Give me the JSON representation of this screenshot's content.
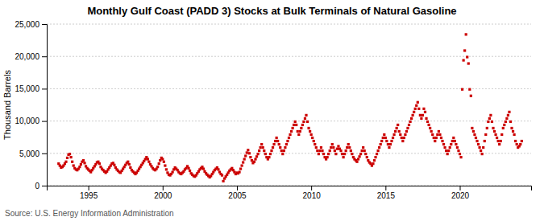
{
  "chart_data": {
    "type": "scatter",
    "title": "Monthly Gulf Coast (PADD 3) Stocks at Bulk Terminals of Natural Gasoline",
    "ylabel": "Thousand Barrels",
    "source": "Source: U.S. Energy Information Administration",
    "color": "#cc0000",
    "marker": "square",
    "grid": "y",
    "xlim": [
      1992.2,
      2024.8
    ],
    "ylim": [
      0,
      25000
    ],
    "xticks": [
      1995,
      2000,
      2005,
      2010,
      2015,
      2020
    ],
    "yticks": [
      0,
      {
        "value": 5000,
        "label": "5,000"
      },
      {
        "value": 10000,
        "label": "10,000"
      },
      {
        "value": 15000,
        "label": "15,000"
      },
      {
        "value": 20000,
        "label": "20,000"
      },
      {
        "value": 25000,
        "label": "25,000"
      }
    ],
    "x": [
      1993.0,
      1993.083,
      1993.167,
      1993.25,
      1993.333,
      1993.417,
      1993.5,
      1993.583,
      1993.667,
      1993.75,
      1993.833,
      1993.917,
      1994.0,
      1994.083,
      1994.167,
      1994.25,
      1994.333,
      1994.417,
      1994.5,
      1994.583,
      1994.667,
      1994.75,
      1994.833,
      1994.917,
      1995.0,
      1995.083,
      1995.167,
      1995.25,
      1995.333,
      1995.417,
      1995.5,
      1995.583,
      1995.667,
      1995.75,
      1995.833,
      1995.917,
      1996.0,
      1996.083,
      1996.167,
      1996.25,
      1996.333,
      1996.417,
      1996.5,
      1996.583,
      1996.667,
      1996.75,
      1996.833,
      1996.917,
      1997.0,
      1997.083,
      1997.167,
      1997.25,
      1997.333,
      1997.417,
      1997.5,
      1997.583,
      1997.667,
      1997.75,
      1997.833,
      1997.917,
      1998.0,
      1998.083,
      1998.167,
      1998.25,
      1998.333,
      1998.417,
      1998.5,
      1998.583,
      1998.667,
      1998.75,
      1998.833,
      1998.917,
      1999.0,
      1999.083,
      1999.167,
      1999.25,
      1999.333,
      1999.417,
      1999.5,
      1999.583,
      1999.667,
      1999.75,
      1999.833,
      1999.917,
      2000.0,
      2000.083,
      2000.167,
      2000.25,
      2000.333,
      2000.417,
      2000.5,
      2000.583,
      2000.667,
      2000.75,
      2000.833,
      2000.917,
      2001.0,
      2001.083,
      2001.167,
      2001.25,
      2001.333,
      2001.417,
      2001.5,
      2001.583,
      2001.667,
      2001.75,
      2001.833,
      2001.917,
      2002.0,
      2002.083,
      2002.167,
      2002.25,
      2002.333,
      2002.417,
      2002.5,
      2002.583,
      2002.667,
      2002.75,
      2002.833,
      2002.917,
      2003.0,
      2003.083,
      2003.167,
      2003.25,
      2003.333,
      2003.417,
      2003.5,
      2003.583,
      2003.667,
      2003.75,
      2003.833,
      2003.917,
      2004.0,
      2004.083,
      2004.167,
      2004.25,
      2004.333,
      2004.417,
      2004.5,
      2004.583,
      2004.667,
      2004.75,
      2004.833,
      2004.917,
      2005.0,
      2005.083,
      2005.167,
      2005.25,
      2005.333,
      2005.417,
      2005.5,
      2005.583,
      2005.667,
      2005.75,
      2005.833,
      2005.917,
      2006.0,
      2006.083,
      2006.167,
      2006.25,
      2006.333,
      2006.417,
      2006.5,
      2006.583,
      2006.667,
      2006.75,
      2006.833,
      2006.917,
      2007.0,
      2007.083,
      2007.167,
      2007.25,
      2007.333,
      2007.417,
      2007.5,
      2007.583,
      2007.667,
      2007.75,
      2007.833,
      2007.917,
      2008.0,
      2008.083,
      2008.167,
      2008.25,
      2008.333,
      2008.417,
      2008.5,
      2008.583,
      2008.667,
      2008.75,
      2008.833,
      2008.917,
      2009.0,
      2009.083,
      2009.167,
      2009.25,
      2009.333,
      2009.417,
      2009.5,
      2009.583,
      2009.667,
      2009.75,
      2009.833,
      2009.917,
      2010.0,
      2010.083,
      2010.167,
      2010.25,
      2010.333,
      2010.417,
      2010.5,
      2010.583,
      2010.667,
      2010.75,
      2010.833,
      2010.917,
      2011.0,
      2011.083,
      2011.167,
      2011.25,
      2011.333,
      2011.417,
      2011.5,
      2011.583,
      2011.667,
      2011.75,
      2011.833,
      2011.917,
      2012.0,
      2012.083,
      2012.167,
      2012.25,
      2012.333,
      2012.417,
      2012.5,
      2012.583,
      2012.667,
      2012.75,
      2012.833,
      2012.917,
      2013.0,
      2013.083,
      2013.167,
      2013.25,
      2013.333,
      2013.417,
      2013.5,
      2013.583,
      2013.667,
      2013.75,
      2013.833,
      2013.917,
      2014.0,
      2014.083,
      2014.167,
      2014.25,
      2014.333,
      2014.417,
      2014.5,
      2014.583,
      2014.667,
      2014.75,
      2014.833,
      2014.917,
      2015.0,
      2015.083,
      2015.167,
      2015.25,
      2015.333,
      2015.417,
      2015.5,
      2015.583,
      2015.667,
      2015.75,
      2015.833,
      2015.917,
      2016.0,
      2016.083,
      2016.167,
      2016.25,
      2016.333,
      2016.417,
      2016.5,
      2016.583,
      2016.667,
      2016.75,
      2016.833,
      2016.917,
      2017.0,
      2017.083,
      2017.167,
      2017.25,
      2017.333,
      2017.417,
      2017.5,
      2017.583,
      2017.667,
      2017.75,
      2017.833,
      2017.917,
      2018.0,
      2018.083,
      2018.167,
      2018.25,
      2018.333,
      2018.417,
      2018.5,
      2018.583,
      2018.667,
      2018.75,
      2018.833,
      2018.917,
      2019.0,
      2019.083,
      2019.167,
      2019.25,
      2019.333,
      2019.417,
      2019.5,
      2019.583,
      2019.667,
      2019.75,
      2019.833,
      2019.917,
      2020.0,
      2020.083,
      2020.167,
      2020.25,
      2020.333,
      2020.417,
      2020.5,
      2020.583,
      2020.667,
      2020.75,
      2020.833,
      2020.917,
      2021.0,
      2021.083,
      2021.167,
      2021.25,
      2021.333,
      2021.417,
      2021.5,
      2021.583,
      2021.667,
      2021.75,
      2021.833,
      2021.917,
      2022.0,
      2022.083,
      2022.167,
      2022.25,
      2022.333,
      2022.417,
      2022.5,
      2022.583,
      2022.667,
      2022.75,
      2022.833,
      2022.917,
      2023.0,
      2023.083,
      2023.167,
      2023.25,
      2023.333,
      2023.417,
      2023.5,
      2023.583,
      2023.667,
      2023.75,
      2023.833,
      2023.917,
      2024.0,
      2024.083,
      2024.167
    ],
    "values": [
      3400,
      3100,
      2800,
      2900,
      3100,
      3400,
      3700,
      4300,
      4800,
      4900,
      4400,
      3700,
      3100,
      2700,
      2500,
      2400,
      2600,
      2900,
      3300,
      3700,
      3900,
      3500,
      3000,
      2700,
      2500,
      2300,
      2100,
      2400,
      2700,
      3000,
      3300,
      3600,
      3700,
      3400,
      2900,
      2600,
      2400,
      2200,
      2000,
      2200,
      2500,
      2800,
      3100,
      3400,
      3500,
      3200,
      2800,
      2500,
      2300,
      2100,
      2000,
      2300,
      2600,
      2900,
      3200,
      3500,
      3700,
      3300,
      2800,
      2400,
      2200,
      2000,
      1800,
      2000,
      2300,
      2600,
      2900,
      3200,
      3500,
      3800,
      4100,
      4400,
      4100,
      3700,
      3300,
      3000,
      2700,
      2500,
      2400,
      2600,
      2900,
      3400,
      3900,
      4300,
      4100,
      3700,
      3100,
      2500,
      2000,
      1700,
      1600,
      1800,
      2100,
      2500,
      2800,
      2600,
      2400,
      2100,
      1900,
      1800,
      2000,
      2200,
      2500,
      2700,
      3000,
      2700,
      2300,
      1900,
      1700,
      1500,
      1400,
      1600,
      1900,
      2200,
      2500,
      2700,
      2900,
      2600,
      2200,
      1900,
      1700,
      1500,
      1300,
      1500,
      1800,
      2100,
      2400,
      2600,
      2800,
      2500,
      2100,
      1800,
      1600,
      700,
      1100,
      1400,
      1700,
      2000,
      2300,
      2500,
      2700,
      2400,
      2100,
      1800,
      2000,
      1900,
      2100,
      2600,
      3100,
      3600,
      4100,
      4600,
      5100,
      5500,
      5000,
      4400,
      3900,
      3500,
      3700,
      4100,
      4500,
      4900,
      5400,
      5900,
      6400,
      5900,
      5400,
      4900,
      4400,
      4100,
      4400,
      4900,
      5400,
      5900,
      6400,
      6900,
      7400,
      6900,
      6400,
      5900,
      5400,
      4900,
      5400,
      5900,
      6400,
      6900,
      7400,
      7900,
      8400,
      8900,
      9400,
      9900,
      9400,
      8400,
      7900,
      8400,
      8900,
      9400,
      9900,
      10400,
      10900,
      9900,
      8900,
      8400,
      7900,
      7400,
      6900,
      6400,
      5900,
      5400,
      4900,
      5400,
      5900,
      5400,
      4900,
      4400,
      4100,
      4400,
      4900,
      5400,
      5900,
      6400,
      5900,
      5400,
      4900,
      5700,
      6100,
      5700,
      5400,
      4900,
      4400,
      4900,
      5400,
      5900,
      6400,
      5900,
      5400,
      4900,
      4400,
      4100,
      3900,
      3700,
      4100,
      4500,
      4900,
      5400,
      5900,
      5400,
      4900,
      4400,
      3900,
      3600,
      3400,
      3100,
      3400,
      3900,
      4400,
      4900,
      5400,
      5900,
      6400,
      6900,
      7400,
      7900,
      7400,
      6900,
      6400,
      5900,
      6400,
      6900,
      7400,
      7900,
      8400,
      8900,
      9400,
      8400,
      7900,
      7400,
      6900,
      7400,
      7900,
      8400,
      8900,
      9400,
      9900,
      10400,
      10900,
      11400,
      11900,
      12400,
      12900,
      11900,
      10900,
      10400,
      10900,
      11900,
      11400,
      10400,
      9900,
      9400,
      8900,
      8400,
      7900,
      7400,
      6900,
      7400,
      7900,
      8400,
      7900,
      7400,
      6900,
      6400,
      5900,
      5400,
      4900,
      5400,
      5900,
      6400,
      6900,
      7400,
      6900,
      6400,
      5900,
      5400,
      4900,
      4400,
      14900,
      19400,
      20900,
      23400,
      19900,
      18900,
      14900,
      13900,
      8900,
      8400,
      7900,
      7400,
      6900,
      6400,
      5900,
      5400,
      4900,
      5900,
      6900,
      7900,
      8900,
      9900,
      10400,
      10900,
      9900,
      8900,
      8400,
      7900,
      7400,
      6900,
      6400,
      6900,
      7900,
      8900,
      9400,
      9900,
      10400,
      10900,
      11400,
      9900,
      8900,
      8400,
      7900,
      6900,
      6400,
      5900,
      6100,
      6400,
      6900
    ]
  }
}
